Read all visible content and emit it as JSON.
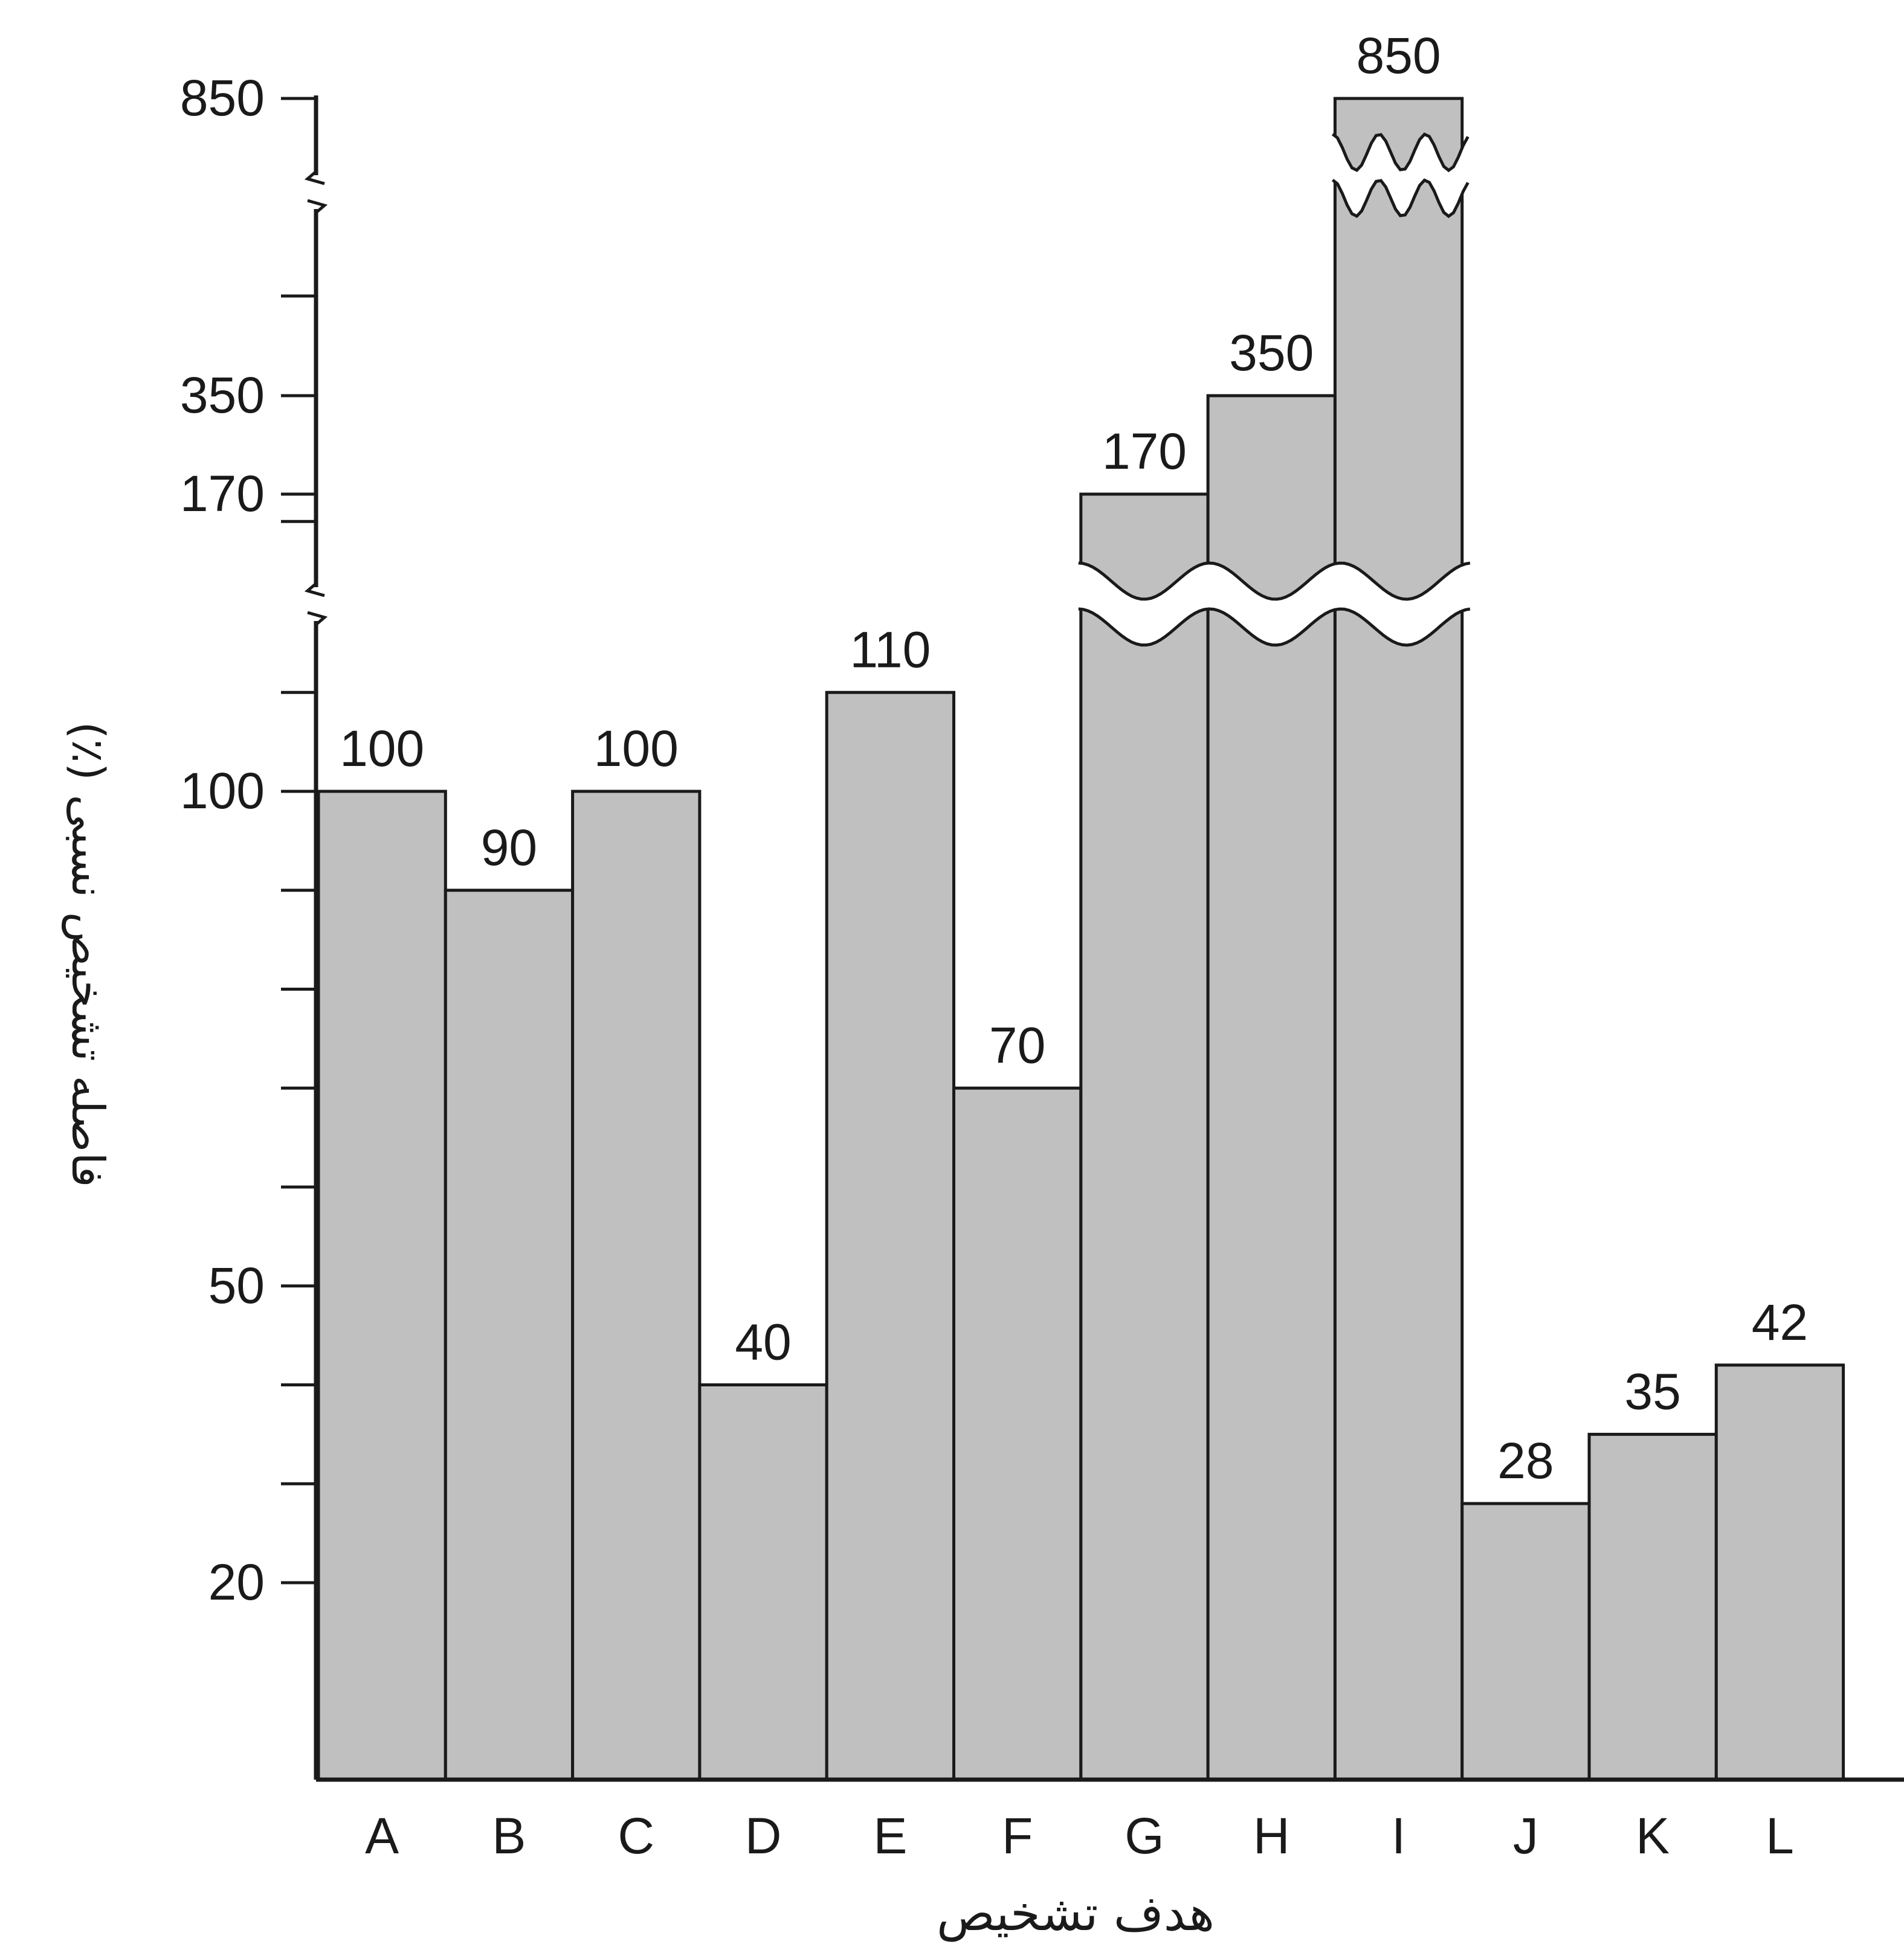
{
  "chart_data": {
    "type": "bar",
    "xlabel": "هدف تشخیص",
    "ylabel": "فاصله تشخیص نسبی (٪)",
    "categories": [
      "A",
      "B",
      "C",
      "D",
      "E",
      "F",
      "G",
      "H",
      "I",
      "J",
      "K",
      "L"
    ],
    "values": [
      100,
      90,
      100,
      40,
      110,
      70,
      170,
      350,
      850,
      28,
      35,
      42
    ],
    "data_labels": [
      "100",
      "90",
      "100",
      "40",
      "110",
      "70",
      "170",
      "350",
      "850",
      "28",
      "35",
      "42"
    ],
    "y_ticks": [
      "20",
      "50",
      "100",
      "170",
      "350",
      "850"
    ],
    "y_axis_breaks": true,
    "grid": false,
    "bar_color": "#c0c0c0",
    "edge_color": "#1a1a1a"
  }
}
